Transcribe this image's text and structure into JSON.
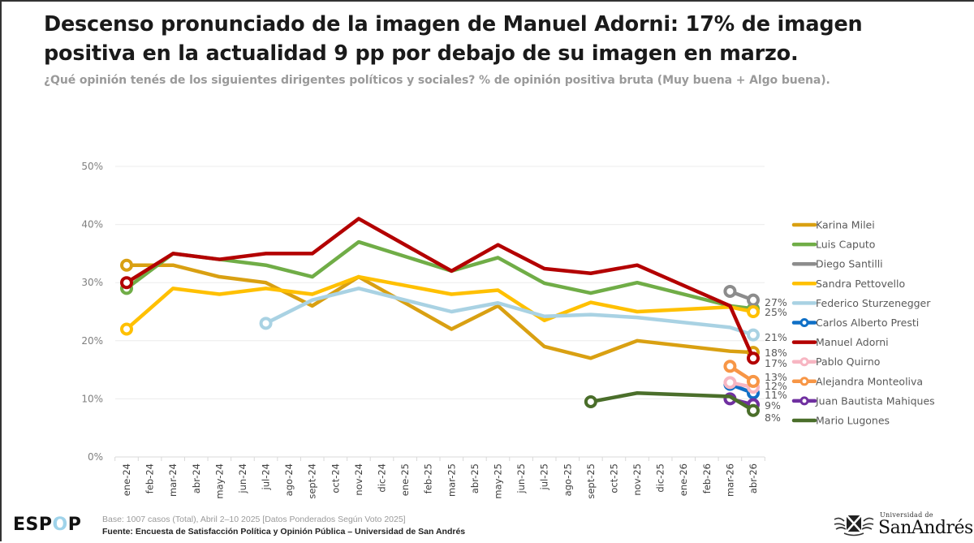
{
  "header": {
    "title": "Descenso pronunciado de la imagen de Manuel Adorni: 17% de imagen positiva en la actualidad 9 pp por debajo de su imagen en marzo.",
    "subtitle": "¿Qué opinión tenés de los siguientes dirigentes políticos y sociales? % de opinión positiva bruta (Muy buena + Algo buena)."
  },
  "footer": {
    "logo_left": "ESP",
    "logo_o": "O",
    "logo_right": "P",
    "base": "Base: 1007 casos (Total), Abril 2–10 2025 [Datos Ponderados Según Voto 2025]",
    "source": "Fuente: Encuesta de Satisfacción Política y Opinión Pública – Universidad de San Andrés",
    "university_small": "Universidad de",
    "university_big": "SanAndrés"
  },
  "chart_data": {
    "type": "line",
    "title": "",
    "xlabel": "",
    "ylabel": "",
    "ylim": [
      0,
      50
    ],
    "yticks": [
      0,
      10,
      20,
      30,
      40,
      50
    ],
    "ytick_labels": [
      "0%",
      "10%",
      "20%",
      "30%",
      "40%",
      "50%"
    ],
    "grid": true,
    "legend_position": "right",
    "categories": [
      "ene-24",
      "feb-24",
      "mar-24",
      "abr-24",
      "may-24",
      "jun-24",
      "jul-24",
      "ago-24",
      "sept-24",
      "oct-24",
      "nov-24",
      "dic-24",
      "ene-25",
      "feb-25",
      "mar-25",
      "abr-25",
      "may-25",
      "jun-25",
      "jul-25",
      "ago-25",
      "sept-25",
      "oct-25",
      "nov-25",
      "dic-25",
      "ene-26",
      "feb-26",
      "mar-26",
      "abr-26"
    ],
    "series": [
      {
        "name": "Karina Milei",
        "color": "#D9A012",
        "end_label": "18%",
        "points": [
          [
            "ene-24",
            33
          ],
          [
            "mar-24",
            33
          ],
          [
            "may-24",
            31
          ],
          [
            "jul-24",
            30
          ],
          [
            "sept-24",
            26
          ],
          [
            "nov-24",
            31
          ],
          [
            "mar-25",
            22
          ],
          [
            "may-25",
            26
          ],
          [
            "jul-25",
            19
          ],
          [
            "sept-25",
            17
          ],
          [
            "nov-25",
            20
          ],
          [
            "mar-26",
            18.2
          ],
          [
            "abr-26",
            18
          ]
        ]
      },
      {
        "name": "Luis Caputo",
        "color": "#70AD47",
        "end_label": "",
        "points": [
          [
            "ene-24",
            29
          ],
          [
            "mar-24",
            35
          ],
          [
            "may-24",
            34
          ],
          [
            "jul-24",
            33
          ],
          [
            "sept-24",
            31
          ],
          [
            "nov-24",
            37
          ],
          [
            "mar-25",
            32
          ],
          [
            "may-25",
            34.3
          ],
          [
            "jul-25",
            29.9
          ],
          [
            "sept-25",
            28.2
          ],
          [
            "nov-25",
            30
          ],
          [
            "mar-26",
            26
          ],
          [
            "abr-26",
            25.5
          ]
        ]
      },
      {
        "name": "Diego Santilli",
        "color": "#8C8C8C",
        "end_label": "27%",
        "points": [
          [
            "mar-26",
            28.5
          ],
          [
            "abr-26",
            27
          ]
        ]
      },
      {
        "name": "Sandra Pettovello",
        "color": "#FFC000",
        "end_label": "25%",
        "points": [
          [
            "ene-24",
            22
          ],
          [
            "mar-24",
            29
          ],
          [
            "may-24",
            28
          ],
          [
            "jul-24",
            29
          ],
          [
            "sept-24",
            28
          ],
          [
            "nov-24",
            31
          ],
          [
            "mar-25",
            28
          ],
          [
            "may-25",
            28.7
          ],
          [
            "jul-25",
            23.5
          ],
          [
            "sept-25",
            26.6
          ],
          [
            "nov-25",
            25
          ],
          [
            "mar-26",
            25.8
          ],
          [
            "abr-26",
            25
          ]
        ]
      },
      {
        "name": "Federico Sturzenegger",
        "color": "#A9D2E3",
        "end_label": "21%",
        "points": [
          [
            "jul-24",
            23
          ],
          [
            "sept-24",
            27
          ],
          [
            "nov-24",
            29
          ],
          [
            "mar-25",
            25
          ],
          [
            "may-25",
            26.5
          ],
          [
            "jul-25",
            24.2
          ],
          [
            "sept-25",
            24.5
          ],
          [
            "nov-25",
            24
          ],
          [
            "mar-26",
            22.3
          ],
          [
            "abr-26",
            21
          ]
        ]
      },
      {
        "name": "Carlos Alberto Presti",
        "color": "#0F6FC6",
        "end_label": "11%",
        "points": [
          [
            "mar-26",
            12.5
          ],
          [
            "abr-26",
            11
          ]
        ]
      },
      {
        "name": "Manuel Adorni",
        "color": "#B30000",
        "end_label": "17%",
        "points": [
          [
            "ene-24",
            30
          ],
          [
            "mar-24",
            35
          ],
          [
            "may-24",
            34
          ],
          [
            "jul-24",
            35
          ],
          [
            "sept-24",
            35
          ],
          [
            "nov-24",
            41
          ],
          [
            "mar-25",
            32
          ],
          [
            "may-25",
            36.5
          ],
          [
            "jul-25",
            32.4
          ],
          [
            "sept-25",
            31.6
          ],
          [
            "nov-25",
            33
          ],
          [
            "mar-26",
            26
          ],
          [
            "abr-26",
            17
          ]
        ]
      },
      {
        "name": "Pablo Quirno",
        "color": "#F7B6C2",
        "end_label": "12%",
        "points": [
          [
            "mar-26",
            12.8
          ],
          [
            "abr-26",
            12
          ]
        ]
      },
      {
        "name": "Alejandra Monteoliva",
        "color": "#F79646",
        "end_label": "13%",
        "points": [
          [
            "mar-26",
            15.6
          ],
          [
            "abr-26",
            13
          ]
        ]
      },
      {
        "name": "Juan Bautista Mahiques",
        "color": "#7030A0",
        "end_label": "9%",
        "points": [
          [
            "mar-26",
            10
          ],
          [
            "abr-26",
            9
          ]
        ]
      },
      {
        "name": "Mario Lugones",
        "color": "#4A6E2A",
        "end_label": "8%",
        "points": [
          [
            "sept-25",
            9.5
          ],
          [
            "nov-25",
            11
          ],
          [
            "mar-26",
            10.4
          ],
          [
            "abr-26",
            8
          ]
        ]
      }
    ]
  }
}
